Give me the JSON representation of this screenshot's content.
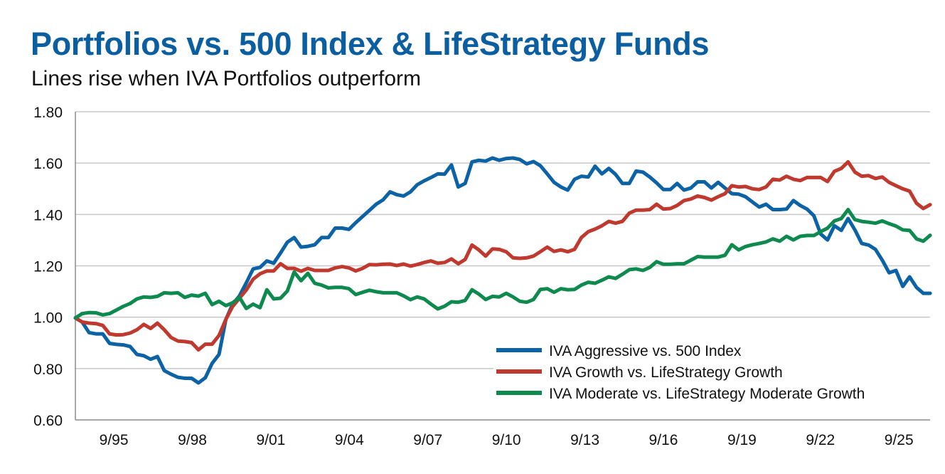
{
  "header": {
    "title": "Portfolios vs. 500 Index & LifeStrategy Funds",
    "subtitle": "Lines rise when IVA Portfolios outperform"
  },
  "chart_data": {
    "type": "line",
    "title": "Portfolios vs. 500 Index & LifeStrategy Funds",
    "subtitle": "Lines rise when IVA Portfolios outperform",
    "xlabel": "",
    "ylabel": "",
    "ylim": [
      0.6,
      1.8
    ],
    "yticks": [
      0.6,
      0.8,
      1.0,
      1.2,
      1.4,
      1.6,
      1.8
    ],
    "ytick_labels": [
      "0.60",
      "0.80",
      "1.00",
      "1.20",
      "1.40",
      "1.60",
      "1.80"
    ],
    "xlim": [
      1994.24,
      2026.9
    ],
    "x_start_year": 1994.24,
    "x_step_years": 0.2613,
    "xticks": [
      {
        "label": "9/95",
        "year": 1995.71
      },
      {
        "label": "9/98",
        "year": 1998.71
      },
      {
        "label": "9/01",
        "year": 2001.71
      },
      {
        "label": "9/04",
        "year": 2004.71
      },
      {
        "label": "9/07",
        "year": 2007.71
      },
      {
        "label": "9/10",
        "year": 2010.71
      },
      {
        "label": "9/13",
        "year": 2013.71
      },
      {
        "label": "9/16",
        "year": 2016.71
      },
      {
        "label": "9/19",
        "year": 2019.71
      },
      {
        "label": "9/22",
        "year": 2022.71
      },
      {
        "label": "9/25",
        "year": 2025.71
      }
    ],
    "grid": true,
    "legend_position": "bottom-right",
    "series": [
      {
        "name": "IVA Aggressive vs. 500 Index",
        "color": "#0b62a4",
        "values": [
          0.997,
          0.981,
          0.94,
          0.935,
          0.935,
          0.898,
          0.894,
          0.892,
          0.886,
          0.855,
          0.85,
          0.836,
          0.847,
          0.792,
          0.778,
          0.766,
          0.762,
          0.762,
          0.744,
          0.764,
          0.82,
          0.855,
          0.991,
          1.051,
          1.083,
          1.134,
          1.188,
          1.194,
          1.219,
          1.21,
          1.25,
          1.292,
          1.31,
          1.273,
          1.276,
          1.282,
          1.31,
          1.31,
          1.347,
          1.347,
          1.342,
          1.368,
          1.392,
          1.416,
          1.44,
          1.457,
          1.488,
          1.477,
          1.472,
          1.488,
          1.516,
          1.531,
          1.544,
          1.558,
          1.557,
          1.593,
          1.507,
          1.521,
          1.605,
          1.611,
          1.608,
          1.62,
          1.611,
          1.618,
          1.62,
          1.614,
          1.597,
          1.606,
          1.59,
          1.558,
          1.525,
          1.507,
          1.495,
          1.537,
          1.549,
          1.546,
          1.588,
          1.558,
          1.579,
          1.556,
          1.521,
          1.521,
          1.569,
          1.565,
          1.546,
          1.523,
          1.497,
          1.497,
          1.521,
          1.495,
          1.503,
          1.527,
          1.527,
          1.503,
          1.525,
          1.503,
          1.481,
          1.479,
          1.469,
          1.449,
          1.429,
          1.44,
          1.419,
          1.419,
          1.421,
          1.454,
          1.435,
          1.421,
          1.395,
          1.324,
          1.301,
          1.356,
          1.338,
          1.384,
          1.34,
          1.287,
          1.281,
          1.264,
          1.222,
          1.173,
          1.182,
          1.12,
          1.157,
          1.116,
          1.093,
          1.093
        ]
      },
      {
        "name": "IVA Growth vs. LifeStrategy Growth",
        "color": "#c0392f",
        "values": [
          0.997,
          0.981,
          0.977,
          0.975,
          0.968,
          0.935,
          0.931,
          0.932,
          0.938,
          0.951,
          0.972,
          0.956,
          0.977,
          0.951,
          0.921,
          0.907,
          0.905,
          0.901,
          0.873,
          0.895,
          0.895,
          0.929,
          0.991,
          1.042,
          1.074,
          1.106,
          1.148,
          1.169,
          1.18,
          1.18,
          1.208,
          1.19,
          1.19,
          1.179,
          1.19,
          1.182,
          1.182,
          1.182,
          1.192,
          1.197,
          1.192,
          1.18,
          1.19,
          1.205,
          1.204,
          1.206,
          1.207,
          1.201,
          1.207,
          1.199,
          1.205,
          1.213,
          1.219,
          1.21,
          1.213,
          1.227,
          1.208,
          1.225,
          1.281,
          1.262,
          1.238,
          1.266,
          1.264,
          1.255,
          1.231,
          1.229,
          1.231,
          1.238,
          1.255,
          1.273,
          1.256,
          1.262,
          1.255,
          1.264,
          1.31,
          1.333,
          1.343,
          1.356,
          1.373,
          1.366,
          1.373,
          1.405,
          1.417,
          1.417,
          1.419,
          1.44,
          1.421,
          1.423,
          1.435,
          1.454,
          1.46,
          1.472,
          1.466,
          1.456,
          1.469,
          1.481,
          1.512,
          1.507,
          1.509,
          1.5,
          1.497,
          1.507,
          1.537,
          1.534,
          1.549,
          1.537,
          1.532,
          1.544,
          1.544,
          1.544,
          1.528,
          1.568,
          1.579,
          1.605,
          1.565,
          1.549,
          1.551,
          1.54,
          1.546,
          1.525,
          1.512,
          1.5,
          1.491,
          1.444,
          1.423,
          1.438
        ]
      },
      {
        "name": "IVA Moderate vs. LifeStrategy Moderate Growth",
        "color": "#0f8a4f",
        "values": [
          0.997,
          1.014,
          1.018,
          1.017,
          1.009,
          1.014,
          1.028,
          1.042,
          1.053,
          1.071,
          1.079,
          1.077,
          1.081,
          1.095,
          1.093,
          1.095,
          1.077,
          1.086,
          1.082,
          1.093,
          1.049,
          1.062,
          1.045,
          1.056,
          1.077,
          1.034,
          1.051,
          1.037,
          1.107,
          1.071,
          1.074,
          1.102,
          1.176,
          1.142,
          1.171,
          1.132,
          1.125,
          1.114,
          1.116,
          1.116,
          1.111,
          1.088,
          1.097,
          1.105,
          1.099,
          1.095,
          1.095,
          1.095,
          1.083,
          1.068,
          1.079,
          1.071,
          1.051,
          1.032,
          1.043,
          1.06,
          1.058,
          1.065,
          1.107,
          1.09,
          1.069,
          1.081,
          1.079,
          1.093,
          1.079,
          1.062,
          1.058,
          1.069,
          1.108,
          1.111,
          1.097,
          1.111,
          1.107,
          1.108,
          1.125,
          1.136,
          1.132,
          1.144,
          1.157,
          1.151,
          1.167,
          1.185,
          1.188,
          1.182,
          1.194,
          1.216,
          1.206,
          1.206,
          1.208,
          1.208,
          1.222,
          1.236,
          1.234,
          1.234,
          1.234,
          1.241,
          1.282,
          1.262,
          1.275,
          1.282,
          1.287,
          1.293,
          1.305,
          1.296,
          1.315,
          1.301,
          1.315,
          1.318,
          1.318,
          1.333,
          1.347,
          1.375,
          1.384,
          1.419,
          1.38,
          1.373,
          1.37,
          1.366,
          1.375,
          1.364,
          1.355,
          1.34,
          1.338,
          1.305,
          1.296,
          1.319
        ]
      }
    ]
  }
}
